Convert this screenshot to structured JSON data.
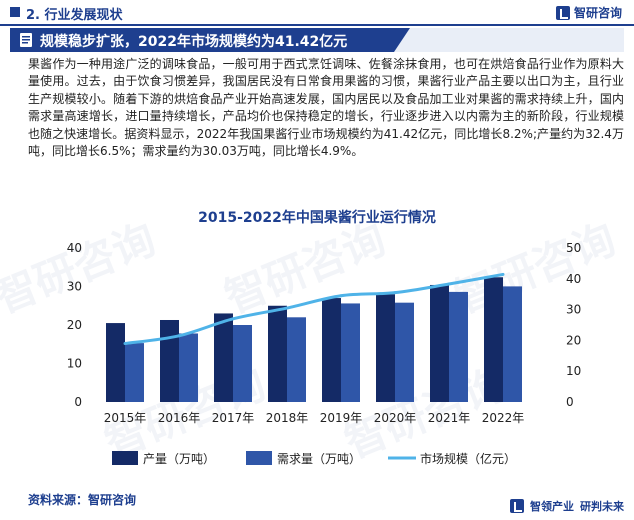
{
  "header": {
    "section_title": "2. 行业发展现状",
    "brand": "智研咨询"
  },
  "banner": {
    "title": "规模稳步扩张，2022年市场规模约为41.42亿元"
  },
  "body_text": "果酱作为一种用途广泛的调味食品，一般可用于西式烹饪调味、佐餐涂抹食用，也可在烘焙食品行业作为原料大量使用。过去，由于饮食习惯差异，我国居民没有日常食用果酱的习惯，果酱行业产品主要以出口为主，且行业生产规模较小。随着下游的烘焙食品产业开始高速发展，国内居民以及食品加工业对果酱的需求持续上升，国内需求量高速增长，进口量持续增长，产品均价也保持稳定的增长，行业逐步进入以内需为主的新阶段，行业规模也随之快速增长。据资料显示，2022年我国果酱行业市场规模约为41.42亿元，同比增长8.2%;产量约为32.4万吨，同比增长6.5%；需求量约为30.03万吨，同比增长4.9%。",
  "watermark": {
    "text": "智研咨询",
    "url": "www.chyxx.com"
  },
  "chart_data": {
    "type": "bar",
    "title": "2015-2022年中国果酱行业运行情况",
    "categories": [
      "2015年",
      "2016年",
      "2017年",
      "2018年",
      "2019年",
      "2020年",
      "2021年",
      "2022年"
    ],
    "y_left": {
      "ticks": [
        "0",
        "10",
        "20",
        "30",
        "40"
      ],
      "lim": [
        0,
        40
      ]
    },
    "y_right": {
      "ticks": [
        "0",
        "10",
        "20",
        "30",
        "40",
        "50"
      ],
      "lim": [
        0,
        50
      ]
    },
    "series": [
      {
        "name": "产量（万吨）",
        "type": "bar",
        "axis": "left",
        "color": "#142a66",
        "values": [
          20.5,
          21.3,
          23.0,
          25.0,
          27.0,
          28.0,
          30.4,
          32.4
        ]
      },
      {
        "name": "需求量（万吨）",
        "type": "bar",
        "axis": "left",
        "color": "#2f56a8",
        "values": [
          15.3,
          17.8,
          20.0,
          22.0,
          25.6,
          25.8,
          28.6,
          30.03
        ]
      },
      {
        "name": "市场规模（亿元）",
        "type": "line",
        "axis": "right",
        "color": "#4fb3e8",
        "values": [
          19.0,
          21.5,
          27.0,
          30.5,
          34.5,
          35.5,
          38.3,
          41.42
        ]
      }
    ],
    "legend_position": "bottom",
    "grid": false
  },
  "footer": {
    "source": "资料来源：智研咨询",
    "brand_left": "智领产业",
    "brand_right": "研判未来"
  }
}
